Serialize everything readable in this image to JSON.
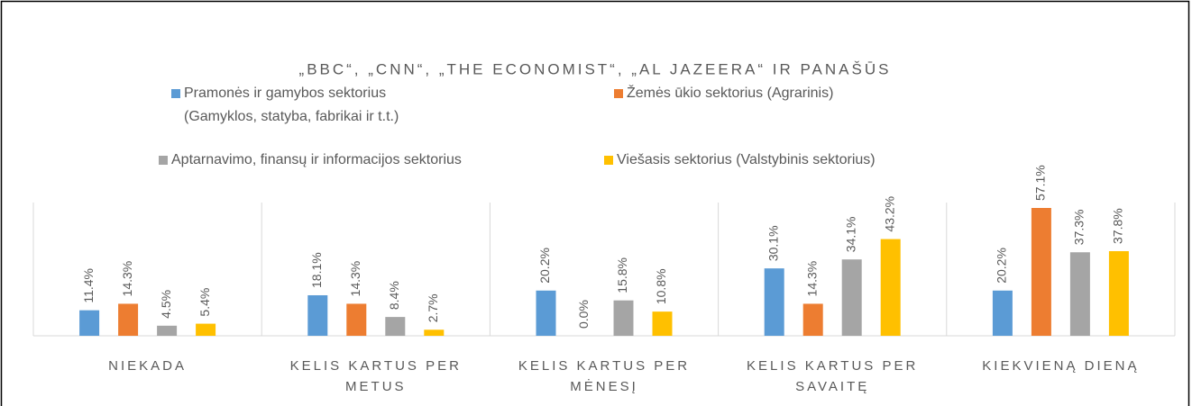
{
  "chart_data": {
    "type": "bar",
    "title": "„BBC“, „CNN“, „THE ECONOMIST“, „AL JAZEERA“ IR PANAŠŪS",
    "categories": [
      "NIEKADA",
      "KELIS KARTUS PER METUS",
      "KELIS KARTUS PER MĖNESĮ",
      "KELIS KARTUS PER SAVAITĘ",
      "KIEKVIENĄ DIENĄ"
    ],
    "series": [
      {
        "name": "Pramonės ir gamybos sektorius (Gamyklos, statyba, fabrikai ir t.t.)",
        "color": "#5b9bd5",
        "values": [
          11.4,
          18.1,
          20.2,
          30.1,
          20.2
        ],
        "value_labels": [
          "11.4%",
          "18.1%",
          "20.2%",
          "30.1%",
          "20.2%"
        ]
      },
      {
        "name": "Žemės ūkio sektorius (Agrarinis)",
        "color": "#ed7d31",
        "values": [
          14.3,
          14.3,
          0.0,
          14.3,
          57.1
        ],
        "value_labels": [
          "14.3%",
          "14.3%",
          "0.0%",
          "14.3%",
          "57.1%"
        ]
      },
      {
        "name": "Aptarnavimo, finansų ir informacijos sektorius",
        "color": "#a5a5a5",
        "values": [
          4.5,
          8.4,
          15.8,
          34.1,
          37.3
        ],
        "value_labels": [
          "4.5%",
          "8.4%",
          "15.8%",
          "34.1%",
          "37.3%"
        ]
      },
      {
        "name": "Viešasis sektorius (Valstybinis sektorius)",
        "color": "#ffc000",
        "values": [
          5.4,
          2.7,
          10.8,
          43.2,
          37.8
        ],
        "value_labels": [
          "5.4%",
          "2.7%",
          "10.8%",
          "43.2%",
          "37.8%"
        ]
      }
    ]
  }
}
